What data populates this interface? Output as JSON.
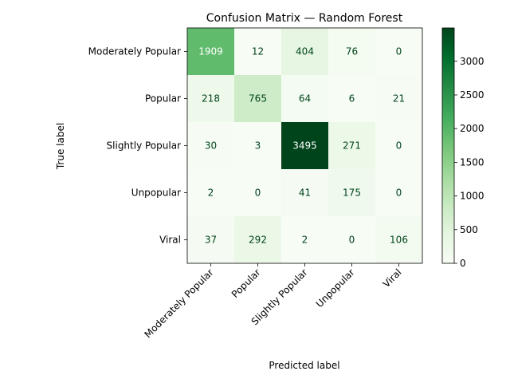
{
  "chart_data": {
    "type": "heatmap",
    "title": "Confusion Matrix — Random Forest",
    "xlabel": "Predicted label",
    "ylabel": "True label",
    "x_categories": [
      "Moderately Popular",
      "Popular",
      "Slightly Popular",
      "Unpopular",
      "Viral"
    ],
    "y_categories": [
      "Moderately Popular",
      "Popular",
      "Slightly Popular",
      "Unpopular",
      "Viral"
    ],
    "matrix": [
      [
        1909,
        12,
        404,
        76,
        0
      ],
      [
        218,
        765,
        64,
        6,
        21
      ],
      [
        30,
        3,
        3495,
        271,
        0
      ],
      [
        2,
        0,
        41,
        175,
        0
      ],
      [
        37,
        292,
        2,
        0,
        106
      ]
    ],
    "colormap": "Greens",
    "colorbar": {
      "vmin": 0,
      "vmax": 3495,
      "ticks": [
        0,
        500,
        1000,
        1500,
        2000,
        2500,
        3000
      ]
    },
    "grid": false,
    "legend": "colorbar-right"
  }
}
